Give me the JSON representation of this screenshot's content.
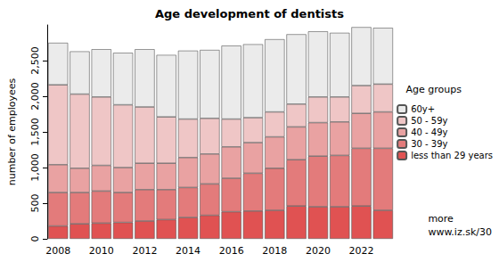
{
  "chart_data": {
    "type": "bar",
    "title": "Age development of dentists",
    "y_label": "number of employees",
    "legend_title": "Age groups",
    "annotations": [
      "more",
      "www.iz.sk/30"
    ],
    "categories": [
      "2008",
      null,
      "2010",
      null,
      "2012",
      null,
      "2014",
      null,
      "2016",
      null,
      "2018",
      null,
      "2020",
      null,
      "2022",
      null
    ],
    "series": [
      {
        "name": "less than 29 years",
        "color": "#e05252",
        "values": [
          180,
          210,
          220,
          230,
          250,
          270,
          300,
          330,
          380,
          390,
          400,
          460,
          450,
          450,
          460,
          400
        ]
      },
      {
        "name": "30 - 39y",
        "color": "#e37b7b",
        "values": [
          470,
          440,
          450,
          420,
          440,
          420,
          420,
          440,
          470,
          530,
          590,
          650,
          710,
          720,
          810,
          870
        ]
      },
      {
        "name": "40 - 49y",
        "color": "#e9a2a2",
        "values": [
          390,
          340,
          360,
          350,
          370,
          370,
          420,
          420,
          440,
          430,
          440,
          460,
          470,
          470,
          490,
          510
        ]
      },
      {
        "name": "50 - 59y",
        "color": "#efc6c6",
        "values": [
          1120,
          1040,
          960,
          880,
          790,
          650,
          540,
          500,
          390,
          350,
          350,
          320,
          360,
          350,
          390,
          390
        ]
      },
      {
        "name": "60y+",
        "color": "#ebebeb",
        "values": [
          590,
          600,
          670,
          730,
          810,
          870,
          960,
          960,
          1030,
          1030,
          1020,
          980,
          920,
          900,
          820,
          790
        ]
      }
    ],
    "stacked": true,
    "ylim": [
      0,
      3000
    ],
    "yticks": [
      0,
      500,
      1000,
      1500,
      2000,
      2500
    ],
    "grid": false,
    "legend": "right"
  }
}
